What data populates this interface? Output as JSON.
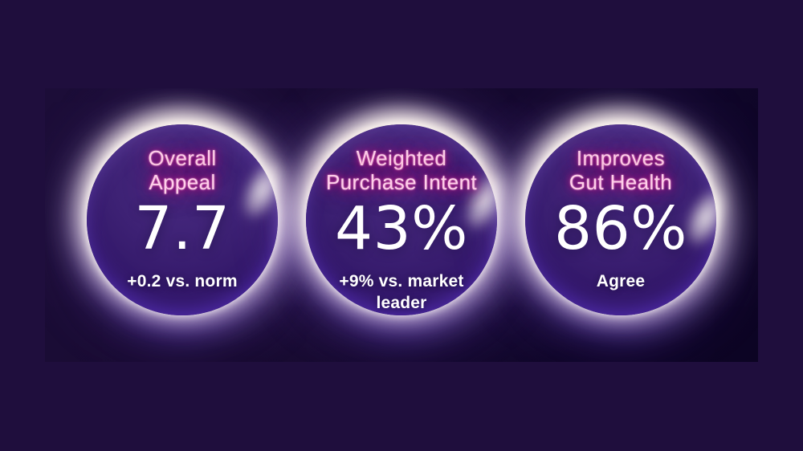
{
  "slide": {
    "cards": [
      {
        "label": "Overall Appeal",
        "lines": [
          "Overall",
          "Appeal"
        ],
        "value": "7.7",
        "note": "+0.2 vs. norm"
      },
      {
        "label": "Weighted Purchase Intent",
        "lines": [
          "Weighted",
          "Purchase Intent"
        ],
        "value": "43%",
        "note": "+9% vs. market leader"
      },
      {
        "label": "Improves Gut Health",
        "lines": [
          "Improves",
          "Gut Health"
        ],
        "value": "86%",
        "note": "Agree"
      }
    ]
  },
  "colors": {
    "page_background": "#1f0e3d",
    "panel_background_dark": "#0c0423",
    "circle_fill": "#381e70",
    "label_pink": "#ffd0ea",
    "label_glow_magenta": "#e3117f",
    "value_white": "#ffffff",
    "halo_white": "#fff6ee",
    "under_glow_purple": "#562ccd"
  },
  "chart_data": {
    "type": "table",
    "metrics": [
      {
        "label": "Overall Appeal",
        "display": "7.7",
        "value": 7.7,
        "comparison": "+0.2 vs. norm"
      },
      {
        "label": "Weighted Purchase Intent",
        "display": "43%",
        "value": 43,
        "comparison": "+9% vs. market leader"
      },
      {
        "label": "Improves Gut Health",
        "display": "86%",
        "value": 86,
        "comparison": "Agree"
      }
    ],
    "legend": "none",
    "grid": false
  }
}
